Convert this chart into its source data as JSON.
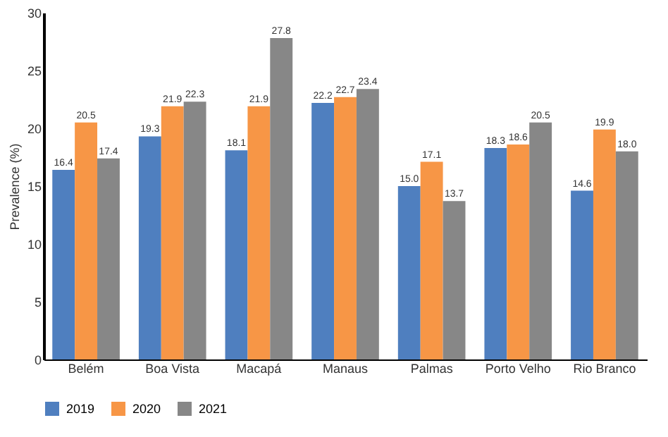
{
  "chart_data": {
    "type": "bar",
    "ylabel": "Prevalence (%)",
    "categories": [
      "Belém",
      "Boa Vista",
      "Macapá",
      "Manaus",
      "Palmas",
      "Porto Velho",
      "Rio Branco"
    ],
    "series": [
      {
        "name": "2019",
        "color": "#4f7fbf",
        "values": [
          16.4,
          19.3,
          18.1,
          22.2,
          15.0,
          18.3,
          14.6
        ],
        "value_labels": [
          "16.4",
          "19.3",
          "18.1",
          "22.2",
          "15.0",
          "18.3",
          "14.6"
        ]
      },
      {
        "name": "2020",
        "color": "#f79646",
        "values": [
          20.5,
          21.9,
          21.9,
          22.7,
          17.1,
          18.6,
          19.9
        ],
        "value_labels": [
          "20.5",
          "21.9",
          "21.9",
          "22.7",
          "17.1",
          "18.6",
          "19.9"
        ]
      },
      {
        "name": "2021",
        "color": "#878787",
        "values": [
          17.4,
          22.3,
          27.8,
          23.4,
          13.7,
          20.5,
          18.0
        ],
        "value_labels": [
          "17.4",
          "22.3",
          "27.8",
          "23.4",
          "13.7",
          "20.5",
          "18.0"
        ]
      }
    ],
    "ylim": [
      0,
      30
    ],
    "yticks": [
      0,
      5,
      10,
      15,
      20,
      25,
      30
    ],
    "grid": false,
    "legend": "bottom"
  }
}
